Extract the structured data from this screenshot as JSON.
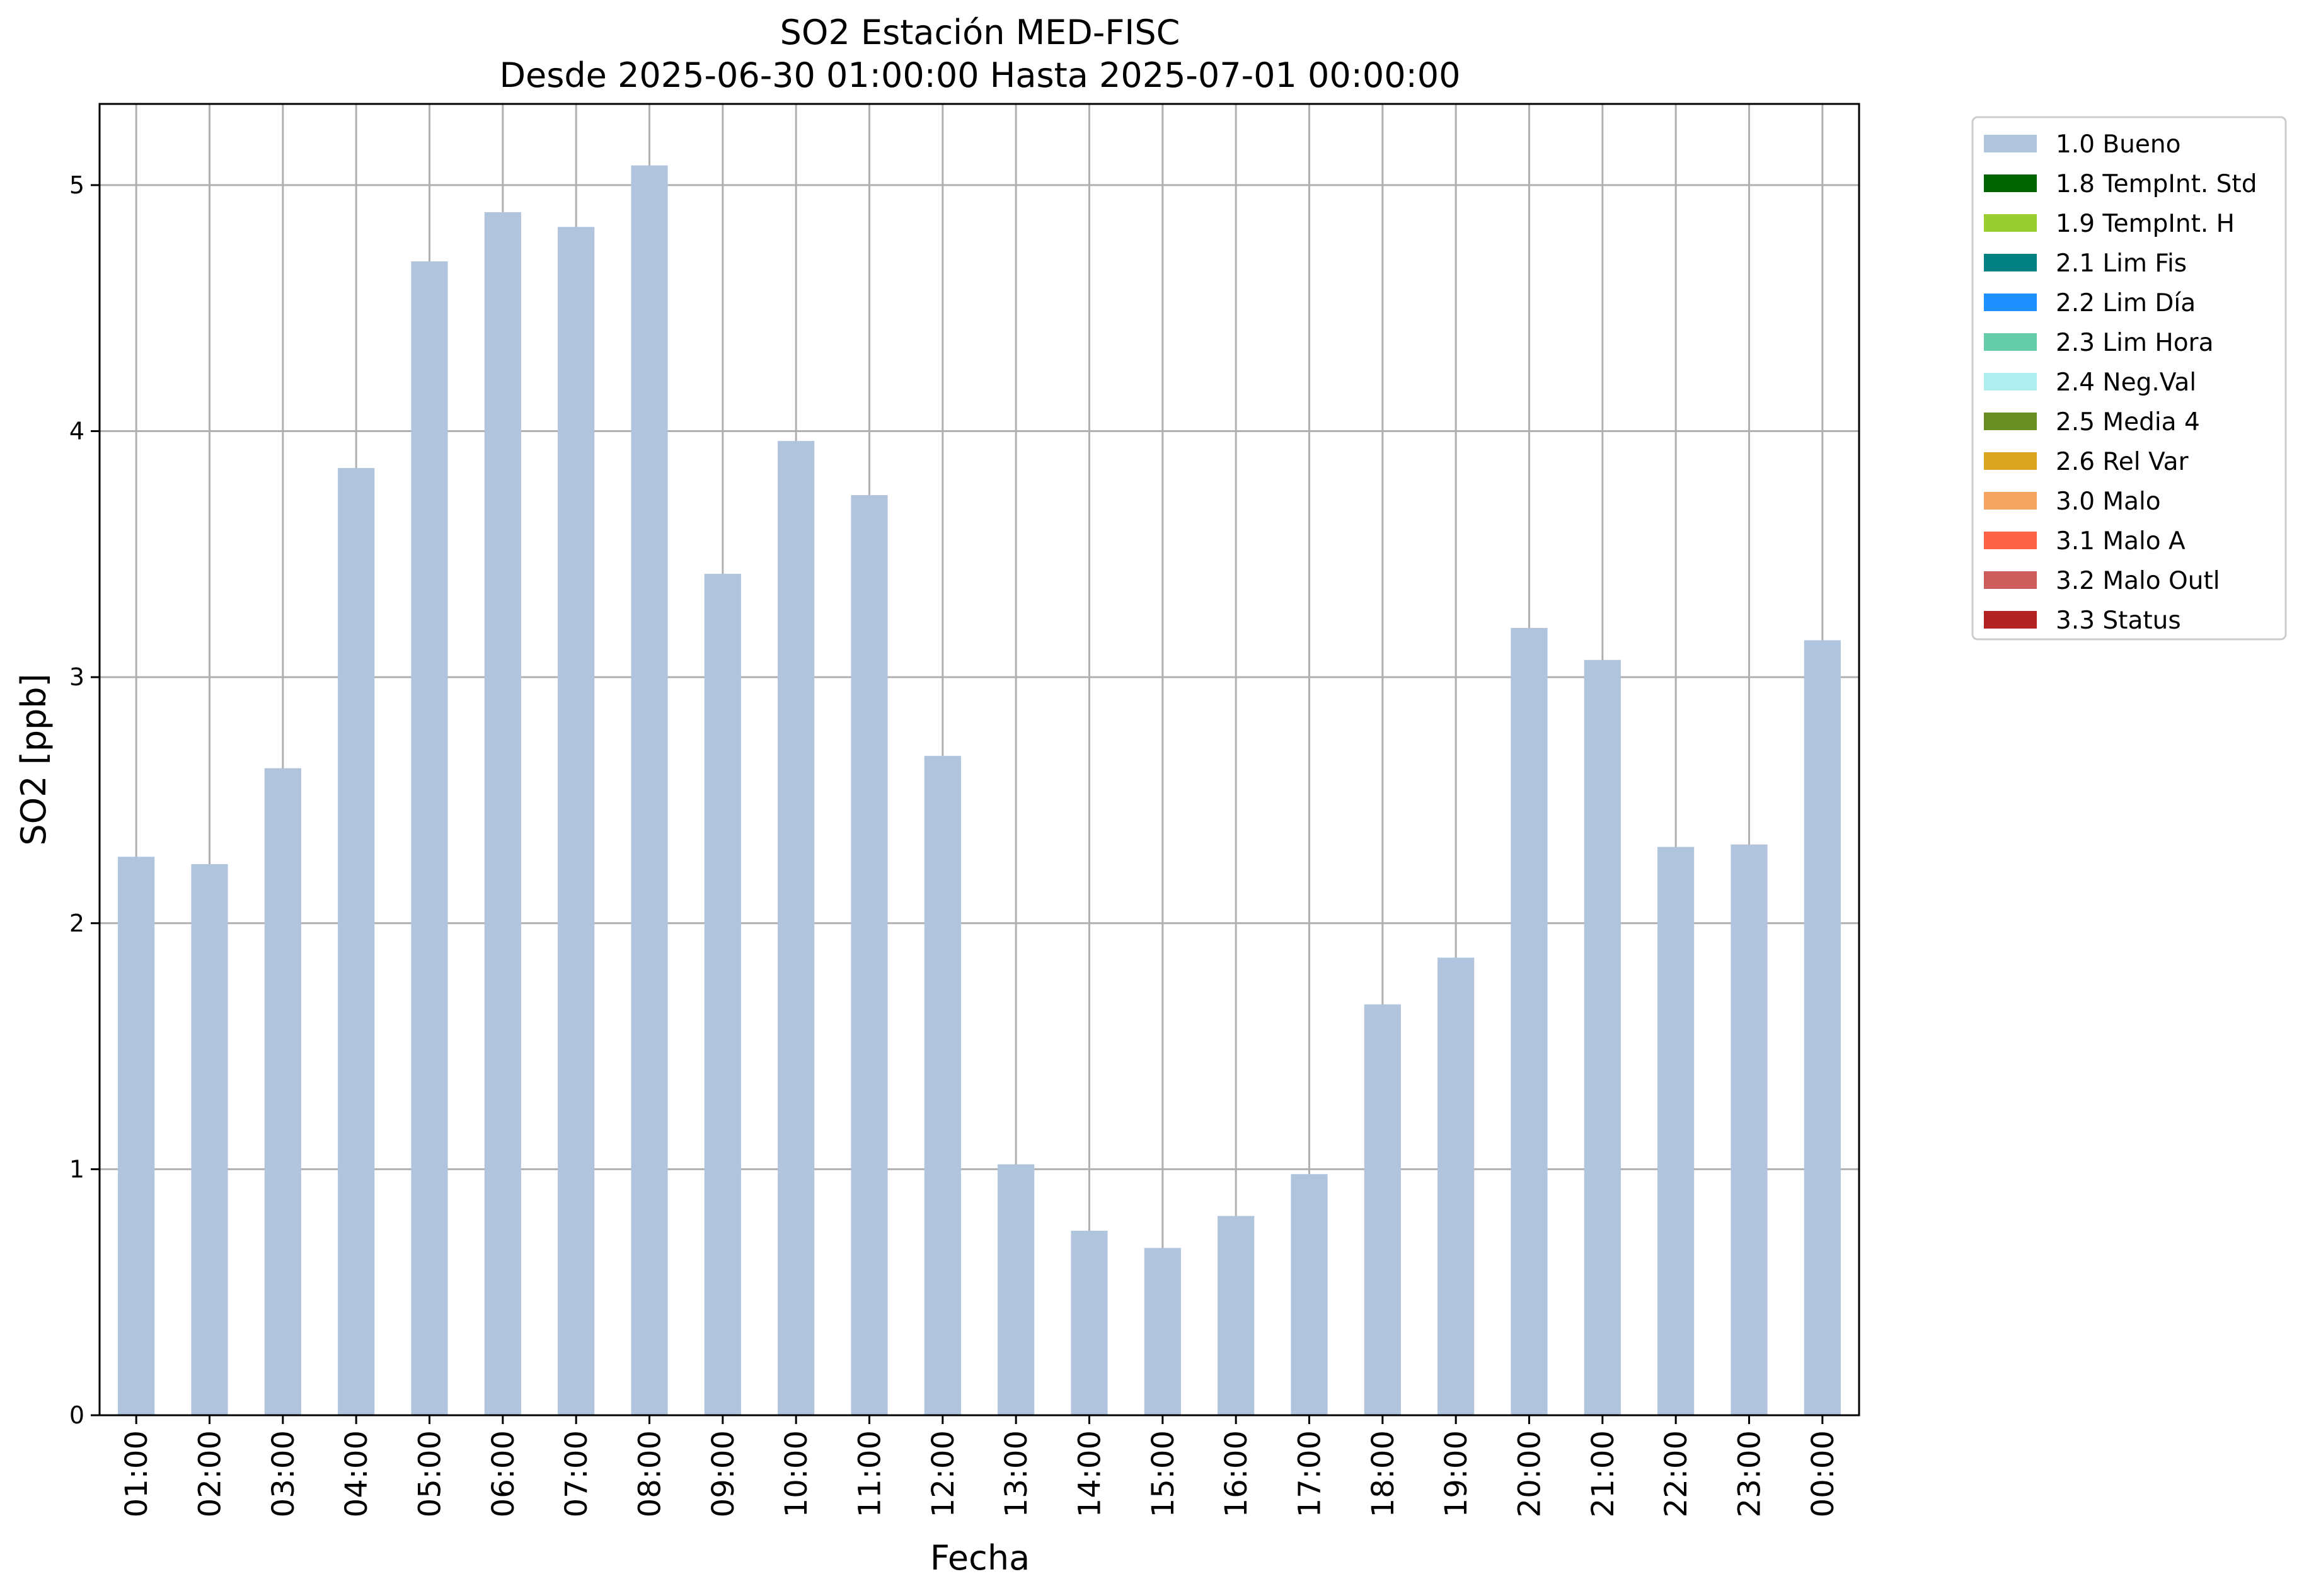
{
  "chart_data": {
    "type": "bar",
    "title": "SO2 Estación MED-FISC",
    "subtitle": "Desde 2025-06-30 01:00:00 Hasta 2025-07-01 00:00:00",
    "xlabel": "Fecha",
    "ylabel": "SO2 [ppb]",
    "ylim": [
      0,
      5.33
    ],
    "yticks": [
      "0",
      "1",
      "2",
      "3",
      "4",
      "5"
    ],
    "grid": true,
    "legend_position": "outside-top-right",
    "categories": [
      "01:00",
      "02:00",
      "03:00",
      "04:00",
      "05:00",
      "06:00",
      "07:00",
      "08:00",
      "09:00",
      "10:00",
      "11:00",
      "12:00",
      "13:00",
      "14:00",
      "15:00",
      "16:00",
      "17:00",
      "18:00",
      "19:00",
      "20:00",
      "21:00",
      "22:00",
      "23:00",
      "00:00"
    ],
    "series": [
      {
        "name": "1.0 Bueno",
        "color": "#b0c4de",
        "values": [
          2.27,
          2.24,
          2.63,
          3.85,
          4.69,
          4.89,
          4.83,
          5.08,
          3.42,
          3.96,
          3.74,
          2.68,
          1.02,
          0.75,
          0.68,
          0.81,
          0.98,
          1.67,
          1.86,
          3.2,
          3.07,
          2.31,
          2.32,
          3.15
        ]
      }
    ],
    "legend": [
      {
        "label": "1.0 Bueno",
        "color": "#b0c4de"
      },
      {
        "label": "1.8 TempInt. Std",
        "color": "#006400"
      },
      {
        "label": "1.9 TempInt. H",
        "color": "#9acd32"
      },
      {
        "label": "2.1 Lim Fis",
        "color": "#008080"
      },
      {
        "label": "2.2 Lim Día",
        "color": "#1e90ff"
      },
      {
        "label": "2.3 Lim Hora",
        "color": "#66cdaa"
      },
      {
        "label": "2.4 Neg.Val",
        "color": "#afeeee"
      },
      {
        "label": "2.5 Media 4",
        "color": "#6b8e23"
      },
      {
        "label": "2.6 Rel Var",
        "color": "#daa520"
      },
      {
        "label": "3.0 Malo",
        "color": "#f4a460"
      },
      {
        "label": "3.1 Malo A",
        "color": "#ff6347"
      },
      {
        "label": "3.2 Malo Outl",
        "color": "#cd5c5c"
      },
      {
        "label": "3.3 Status",
        "color": "#b22222"
      }
    ]
  }
}
